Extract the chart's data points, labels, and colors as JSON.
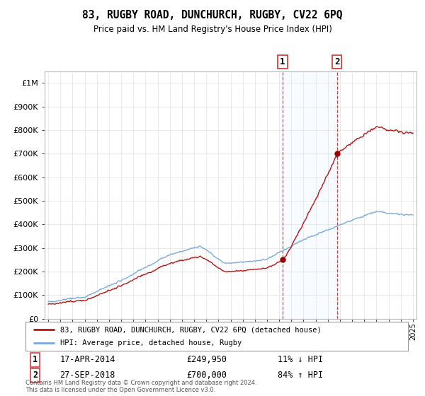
{
  "title": "83, RUGBY ROAD, DUNCHURCH, RUGBY, CV22 6PQ",
  "subtitle": "Price paid vs. HM Land Registry's House Price Index (HPI)",
  "legend_entry1": "83, RUGBY ROAD, DUNCHURCH, RUGBY, CV22 6PQ (detached house)",
  "legend_entry2": "HPI: Average price, detached house, Rugby",
  "sale1_label": "1",
  "sale1_price": 249950,
  "sale1_year": 2014.29,
  "sale1_text": "17-APR-2014",
  "sale1_val_text": "£249,950",
  "sale1_hpi_text": "11% ↓ HPI",
  "sale2_label": "2",
  "sale2_price": 700000,
  "sale2_year": 2018.75,
  "sale2_text": "27-SEP-2018",
  "sale2_val_text": "£700,000",
  "sale2_hpi_text": "84% ↑ HPI",
  "footer": "Contains HM Land Registry data © Crown copyright and database right 2024.\nThis data is licensed under the Open Government Licence v3.0.",
  "hpi_color": "#7aaadd",
  "price_color": "#bb1111",
  "sale_marker_color": "#990000",
  "sale_vline_color": "#cc3333",
  "shade_color": "#ddeeff",
  "ylim_max": 1050000,
  "ylim_min": 0,
  "xlim_min": 1994.7,
  "xlim_max": 2025.3
}
